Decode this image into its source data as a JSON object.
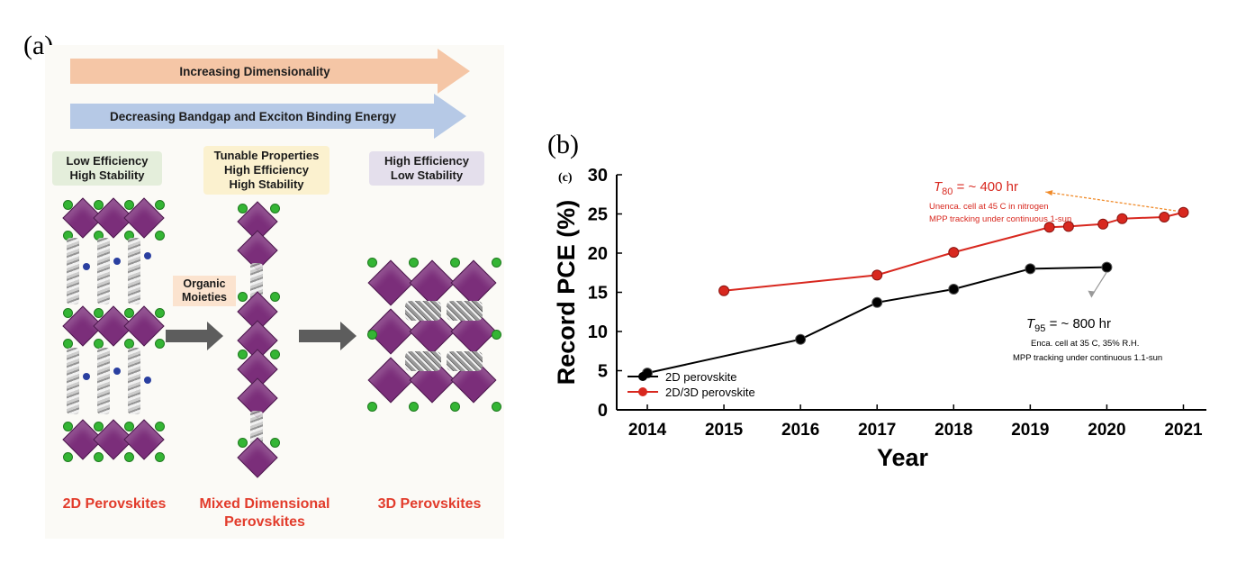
{
  "panels": {
    "a_label": "(a)",
    "b_label": "(b)",
    "c_label": "(c)"
  },
  "panel_a": {
    "arrow_top": "Increasing Dimensionality",
    "arrow_bottom": "Decreasing Bandgap and Exciton Binding Energy",
    "tag_2d": [
      "Low Efficiency",
      "High Stability"
    ],
    "tag_mixed": [
      "Tunable Properties",
      "High Efficiency",
      "High Stability"
    ],
    "tag_3d": [
      "High Efficiency",
      "Low Stability"
    ],
    "organic_label": [
      "Organic",
      "Moieties"
    ],
    "label_2d": "2D Perovskites",
    "label_mixed": [
      "Mixed Dimensional",
      "Perovskites"
    ],
    "label_3d": "3D Perovskites",
    "colors": {
      "octahedra": "#7b2e7a",
      "halide": "#34b534",
      "cation": "#2a3fa0",
      "title_red": "#e23b2b"
    }
  },
  "chart_data": {
    "type": "line",
    "xlabel": "Year",
    "ylabel": "Record PCE (%)",
    "xlim": [
      2013.6,
      2021.3
    ],
    "ylim": [
      0,
      30
    ],
    "xticks": [
      2014,
      2015,
      2016,
      2017,
      2018,
      2019,
      2020,
      2021
    ],
    "yticks": [
      0,
      5,
      10,
      15,
      20,
      25,
      30
    ],
    "series": [
      {
        "name": "2D perovskite",
        "color": "#000000",
        "points": [
          [
            2014.0,
            4.7
          ],
          [
            2016.0,
            9.0
          ],
          [
            2017.0,
            13.7
          ],
          [
            2018.0,
            15.4
          ],
          [
            2019.0,
            18.0
          ],
          [
            2020.0,
            18.2
          ]
        ]
      },
      {
        "name": "2D/3D perovskite",
        "color": "#d8281f",
        "points": [
          [
            2015.0,
            15.2
          ],
          [
            2017.0,
            17.2
          ],
          [
            2018.0,
            20.1
          ],
          [
            2019.25,
            23.3
          ],
          [
            2019.5,
            23.4
          ],
          [
            2019.95,
            23.7
          ],
          [
            2020.2,
            24.4
          ],
          [
            2020.75,
            24.6
          ],
          [
            2021.0,
            25.2
          ]
        ]
      }
    ],
    "legend_position": "bottom-left",
    "annotations": [
      {
        "title_prefix": "T",
        "title_sub": "80",
        "title_suffix": " = ~ 400 hr",
        "lines": [
          "Unenca. cell at 45 C in nitrogen",
          "MPP tracking under continuous 1-sun"
        ],
        "color": "#d8281f"
      },
      {
        "title_prefix": "T",
        "title_sub": "95",
        "title_suffix": " = ~ 800 hr",
        "lines": [
          "Enca. cell at 35 C, 35% R.H.",
          "MPP tracking under continuous 1.1-sun"
        ],
        "color": "#000000"
      }
    ]
  }
}
